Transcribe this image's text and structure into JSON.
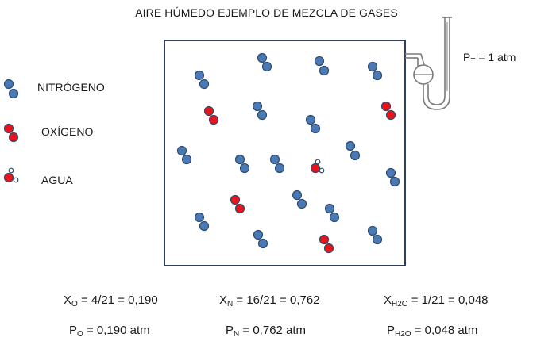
{
  "title": "AIRE HÚMEDO EJEMPLO DE MEZCLA DE GASES",
  "legend": {
    "nitrogen": "NITRÓGENO",
    "oxygen": "OXÍGENO",
    "water": "AGUA"
  },
  "pressure_total": {
    "symbol": "P",
    "sub": "T",
    "value": " = 1 atm"
  },
  "mole_fractions": [
    {
      "symbol": "X",
      "sub": "O",
      "value": " = 4/21 = 0,190"
    },
    {
      "symbol": "X",
      "sub": "N",
      "value": " = 16/21 = 0,762"
    },
    {
      "symbol": "X",
      "sub": "H2O",
      "value": " = 1/21 = 0,048"
    }
  ],
  "partial_pressures": [
    {
      "symbol": "P",
      "sub": "O",
      "value": " = 0,190 atm"
    },
    {
      "symbol": "P",
      "sub": "N",
      "value": " = 0,762 atm"
    },
    {
      "symbol": "P",
      "sub": "H2O",
      "value": " = 0,048 atm"
    }
  ],
  "colors": {
    "nitrogen_atom": "#4a7ab5",
    "oxygen_atom": "#e8141b",
    "box_border": "#2e3f5c",
    "manometer": "#7a7a7a"
  }
}
